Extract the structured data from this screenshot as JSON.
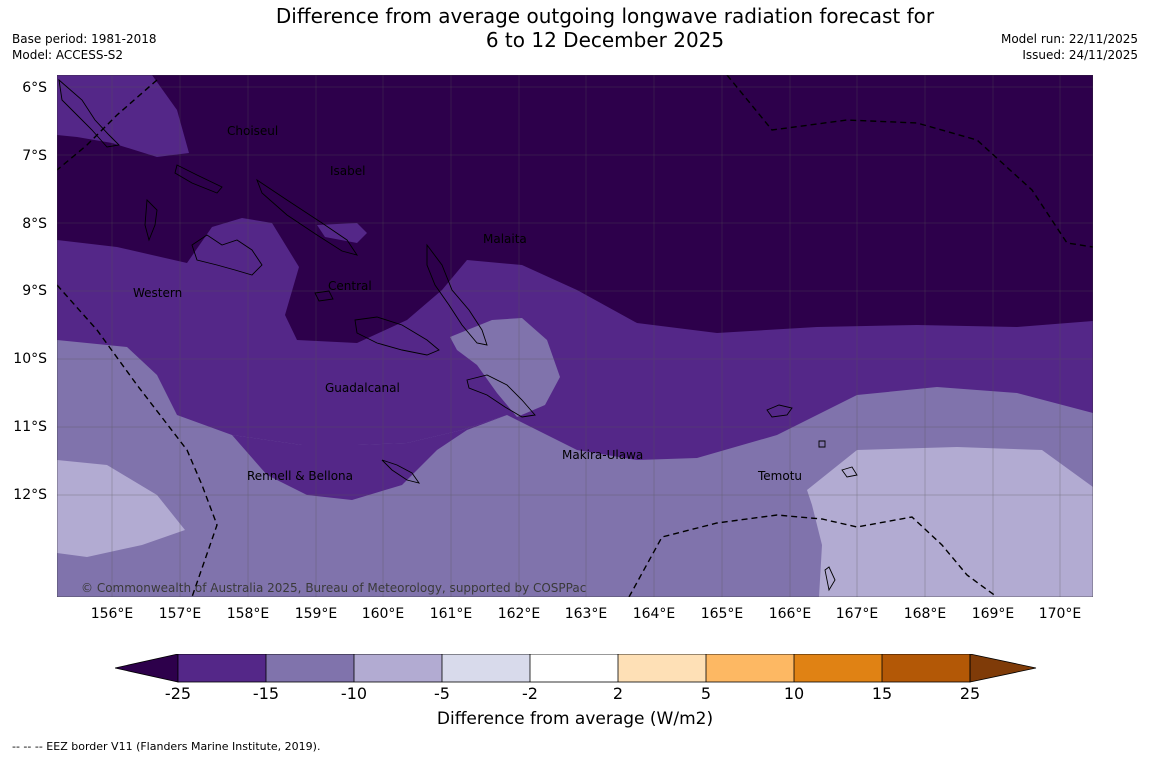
{
  "title_line1": "Difference from average outgoing longwave radiation forecast for",
  "title_line2": "6 to 12 December 2025",
  "base_period": "Base period: 1981-2018",
  "model": "Model: ACCESS-S2",
  "model_run": "Model run: 22/11/2025",
  "issued": "Issued: 24/11/2025",
  "map": {
    "lat_labels": [
      "6°S",
      "7°S",
      "8°S",
      "9°S",
      "10°S",
      "11°S",
      "12°S"
    ],
    "lon_labels": [
      "156°E",
      "157°E",
      "158°E",
      "159°E",
      "160°E",
      "161°E",
      "162°E",
      "163°E",
      "164°E",
      "165°E",
      "166°E",
      "167°E",
      "168°E",
      "169°E",
      "170°E"
    ],
    "places": {
      "choiseul": "Choiseul",
      "isabel": "Isabel",
      "malaita": "Malaita",
      "western": "Western",
      "central": "Central",
      "guadalcanal": "Guadalcanal",
      "makira": "Makira-Ulawa",
      "rennell": "Rennell & Bellona",
      "temotu": "Temotu"
    },
    "copyright": "© Commonwealth of Australia 2025, Bureau of Meteorology, supported by COSPPac"
  },
  "colorbar": {
    "ticks": [
      "-25",
      "-15",
      "-10",
      "-5",
      "-2",
      "2",
      "5",
      "10",
      "15",
      "25"
    ],
    "label": "Difference from average (W/m2)",
    "colors": {
      "below": "#2d004b",
      "c1": "#542788",
      "c2": "#8073ac",
      "c3": "#b2abd2",
      "c4": "#d8daeb",
      "c5": "#ffffff",
      "c6": "#fee0b6",
      "c7": "#fdb863",
      "c8": "#e08214",
      "c9": "#b35806",
      "above": "#7f3b08"
    }
  },
  "footnote": "--  --  -- EEZ border V11 (Flanders Marine Institute, 2019)."
}
